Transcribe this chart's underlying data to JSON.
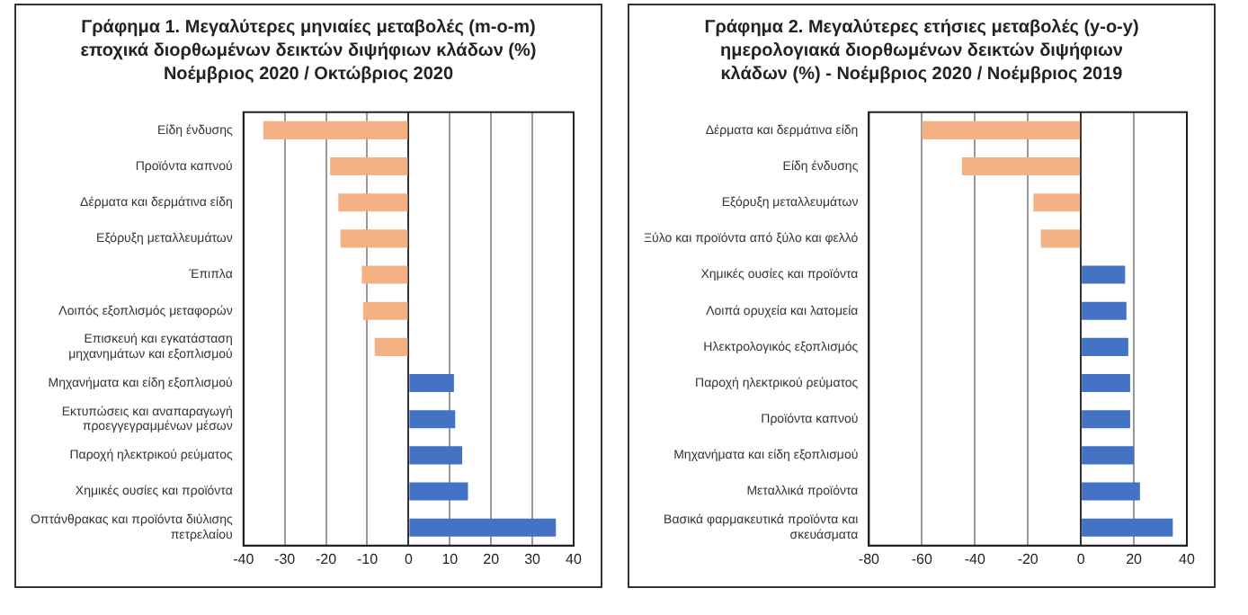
{
  "chart_data": [
    {
      "type": "bar",
      "orientation": "horizontal",
      "title": "Γράφημα 1. Μεγαλύτερες μηνιαίες μεταβολές (m-o-m)\nεποχικά διορθωμένων δεικτών διψήφιων κλάδων (%)\nΝοέμβριος 2020 / Οκτώβριος 2020",
      "categories": [
        "Είδη ένδυσης",
        "Προϊόντα καπνού",
        "Δέρματα και δερμάτινα είδη",
        "Εξόρυξη μεταλλευμάτων",
        "Έπιπλα",
        "Λοιπός εξοπλισμός μεταφορών",
        "Επισκευή και εγκατάσταση μηχανημάτων και εξοπλισμού",
        "Μηχανήματα και είδη εξοπλισμού",
        "Εκτυπώσεις και αναπαραγωγή προεγγεγραμμένων μέσων",
        "Παροχή ηλεκτρικού ρεύματος",
        "Χημικές ουσίες και προϊόντα",
        "Οπτάνθρακας και προϊόντα διύλισης πετρελαίου"
      ],
      "values": [
        -35.2,
        -19,
        -17,
        -16.5,
        -11.3,
        -11,
        -8.2,
        11,
        11.3,
        13,
        14.4,
        35.7
      ],
      "colors": [
        "#f4b183",
        "#f4b183",
        "#f4b183",
        "#f4b183",
        "#f4b183",
        "#f4b183",
        "#f4b183",
        "#4472c4",
        "#4472c4",
        "#4472c4",
        "#4472c4",
        "#4472c4"
      ],
      "xlim": [
        -40,
        40
      ],
      "xticks": [
        -40,
        -30,
        -20,
        -10,
        0,
        10,
        20,
        30,
        40
      ],
      "grid": "x",
      "legend": false
    },
    {
      "type": "bar",
      "orientation": "horizontal",
      "title": "Γράφημα 2. Μεγαλύτερες ετήσιες μεταβολές (y-o-y)\nημερολογιακά διορθωμένων δεικτών διψήφιων\nκλάδων (%) - Νοέμβριος 2020 / Νοέμβριος 2019",
      "categories": [
        "Δέρματα και δερμάτινα είδη",
        "Είδη ένδυσης",
        "Εξόρυξη μεταλλευμάτων",
        "Ξύλο και προϊόντα από ξύλο και φελλό",
        "Χημικές ουσίες και προϊόντα",
        "Λοιπά ορυχεία και λατομεία",
        "Ηλεκτρολογικός εξοπλισμός",
        "Παροχή ηλεκτρικού ρεύματος",
        "Προϊόντα καπνού",
        "Μηχανήματα και είδη εξοπλισμού",
        "Μεταλλικά προϊόντα",
        "Βασικά φαρμακευτικά προϊόντα και σκευάσματα"
      ],
      "values": [
        -60,
        -44.9,
        -17.9,
        -15.1,
        16.7,
        17.2,
        17.9,
        18.6,
        18.6,
        20,
        22.3,
        34.7
      ],
      "colors": [
        "#f4b183",
        "#f4b183",
        "#f4b183",
        "#f4b183",
        "#4472c4",
        "#4472c4",
        "#4472c4",
        "#4472c4",
        "#4472c4",
        "#4472c4",
        "#4472c4",
        "#4472c4"
      ],
      "xlim": [
        -80,
        40
      ],
      "xticks": [
        -80,
        -60,
        -40,
        -20,
        0,
        20,
        40
      ],
      "grid": "x",
      "legend": false
    }
  ]
}
